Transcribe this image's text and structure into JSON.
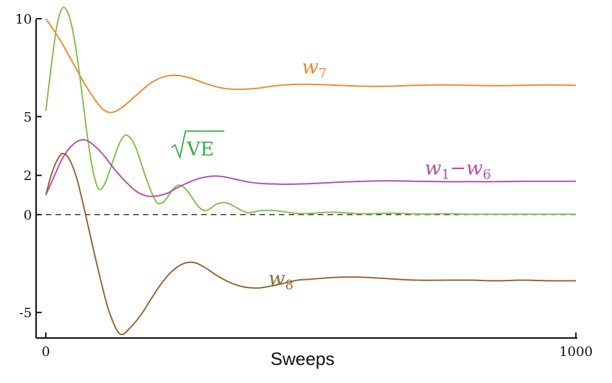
{
  "chart_data": {
    "type": "line",
    "xlabel": "Sweeps",
    "ylabel": "",
    "xlim": [
      -15,
      1000
    ],
    "ylim": [
      -6.3,
      10.6
    ],
    "xticks": [
      {
        "value": 0,
        "label": "0"
      },
      {
        "value": 1000,
        "label": "1000"
      }
    ],
    "yticks": [
      {
        "value": 10,
        "label": "10"
      },
      {
        "value": 5,
        "label": "5"
      },
      {
        "value": 2,
        "label": "2"
      },
      {
        "value": 0,
        "label": "0"
      },
      {
        "value": -5,
        "label": "-5"
      }
    ],
    "reference_line": {
      "y": 0,
      "style": "dashed"
    },
    "grid": false,
    "series": [
      {
        "id": "w7",
        "label_main": "w",
        "label_sub": "7",
        "color": "#ee8a2a",
        "label_pos": {
          "x": 483,
          "y": 7.2
        },
        "x": [
          0,
          25,
          50,
          75,
          100,
          115,
          130,
          150,
          175,
          200,
          225,
          250,
          275,
          300,
          325,
          350,
          375,
          400,
          425,
          450,
          475,
          500,
          550,
          600,
          650,
          700,
          750,
          800,
          850,
          900,
          950,
          1000
        ],
        "values": [
          10.0,
          9.0,
          7.8,
          6.6,
          5.6,
          5.25,
          5.25,
          5.6,
          6.2,
          6.75,
          7.05,
          7.1,
          6.95,
          6.7,
          6.5,
          6.4,
          6.4,
          6.45,
          6.55,
          6.62,
          6.65,
          6.65,
          6.6,
          6.55,
          6.55,
          6.6,
          6.62,
          6.6,
          6.58,
          6.6,
          6.62,
          6.6
        ]
      },
      {
        "id": "ve",
        "label": "VE",
        "color": "#7fc04a",
        "label_color": "#2fae3c",
        "label_pos": {
          "x": 232,
          "y": 3.2
        },
        "x": [
          0,
          10,
          20,
          30,
          40,
          50,
          60,
          70,
          80,
          90,
          100,
          110,
          120,
          130,
          140,
          150,
          160,
          170,
          180,
          190,
          200,
          210,
          220,
          230,
          240,
          250,
          260,
          270,
          280,
          290,
          300,
          310,
          320,
          330,
          340,
          350,
          360,
          370,
          380,
          390,
          400,
          420,
          440,
          460,
          480,
          500,
          520,
          540,
          560,
          580,
          600,
          620,
          640,
          660,
          680,
          700,
          720,
          740,
          760,
          780,
          800,
          850,
          900,
          950,
          1000
        ],
        "values": [
          5.3,
          7.5,
          9.5,
          10.5,
          10.4,
          9.5,
          7.9,
          5.8,
          3.7,
          2.1,
          1.3,
          1.5,
          2.2,
          3.0,
          3.7,
          4.05,
          3.9,
          3.4,
          2.6,
          1.8,
          1.1,
          0.6,
          0.6,
          0.9,
          1.3,
          1.5,
          1.4,
          1.1,
          0.7,
          0.35,
          0.2,
          0.3,
          0.5,
          0.6,
          0.6,
          0.5,
          0.35,
          0.2,
          0.1,
          0.12,
          0.18,
          0.22,
          0.18,
          0.1,
          0.05,
          0.06,
          0.1,
          0.12,
          0.1,
          0.06,
          0.04,
          0.05,
          0.07,
          0.07,
          0.05,
          0.03,
          0.03,
          0.04,
          0.04,
          0.03,
          0.02,
          0.02,
          0.02,
          0.02,
          0.02
        ]
      },
      {
        "id": "w1w6",
        "label_main": "w",
        "label_sub": "1",
        "label_dash": "−",
        "label_main2": "w",
        "label_sub2": "6",
        "color": "#b150a6",
        "label_pos": {
          "x": 840,
          "y": 2.05
        },
        "x": [
          0,
          15,
          30,
          45,
          60,
          75,
          90,
          110,
          130,
          150,
          170,
          190,
          210,
          230,
          250,
          270,
          290,
          310,
          330,
          350,
          375,
          400,
          450,
          500,
          550,
          600,
          650,
          700,
          750,
          800,
          850,
          900,
          950,
          1000
        ],
        "values": [
          1.0,
          1.9,
          2.8,
          3.4,
          3.75,
          3.8,
          3.55,
          3.0,
          2.3,
          1.7,
          1.2,
          0.95,
          0.95,
          1.1,
          1.4,
          1.65,
          1.85,
          1.95,
          1.95,
          1.85,
          1.7,
          1.6,
          1.55,
          1.58,
          1.65,
          1.7,
          1.72,
          1.7,
          1.68,
          1.68,
          1.68,
          1.7,
          1.7,
          1.7
        ]
      },
      {
        "id": "w8",
        "label_main": "w",
        "label_sub": "8",
        "color": "#93652e",
        "label_pos": {
          "x": 420,
          "y": -3.6
        },
        "x": [
          0,
          10,
          20,
          30,
          40,
          50,
          60,
          75,
          90,
          105,
          120,
          140,
          160,
          180,
          200,
          220,
          240,
          260,
          280,
          300,
          325,
          350,
          375,
          400,
          425,
          450,
          475,
          500,
          550,
          600,
          650,
          700,
          750,
          800,
          850,
          900,
          950,
          1000
        ],
        "values": [
          1.0,
          2.0,
          2.7,
          3.1,
          3.0,
          2.5,
          1.7,
          0.0,
          -1.8,
          -3.5,
          -5.0,
          -6.1,
          -5.75,
          -5.1,
          -4.25,
          -3.45,
          -2.85,
          -2.5,
          -2.45,
          -2.7,
          -3.15,
          -3.5,
          -3.7,
          -3.75,
          -3.65,
          -3.5,
          -3.35,
          -3.3,
          -3.2,
          -3.2,
          -3.28,
          -3.35,
          -3.35,
          -3.35,
          -3.38,
          -3.35,
          -3.38,
          -3.38
        ]
      }
    ]
  }
}
